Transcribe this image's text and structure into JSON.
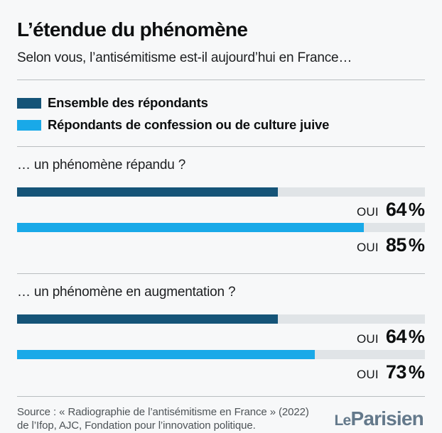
{
  "header": {
    "title": "L’étendue du phénomène",
    "subtitle": "Selon vous, l’antisémitisme est-il aujourd’hui en France…"
  },
  "colors": {
    "dark_blue": "#155478",
    "light_blue": "#19A9E8",
    "track_grey": "#E0E4E7",
    "background": "#F7F8F9",
    "logo_slate": "#64798B"
  },
  "legend": {
    "items": [
      {
        "label": "Ensemble des répondants",
        "color": "#155478"
      },
      {
        "label": "Répondants de confession ou de culture juive",
        "color": "#19A9E8"
      }
    ]
  },
  "sections": [
    {
      "question": "… un phénomène répandu ?",
      "bars": [
        {
          "series": "Ensemble des répondants",
          "answer": "OUI",
          "number": "64",
          "unit": "%",
          "percent": 64,
          "color": "#155478"
        },
        {
          "series": "Répondants de confession ou de culture juive",
          "answer": "OUI",
          "number": "85",
          "unit": "%",
          "percent": 85,
          "color": "#19A9E8"
        }
      ]
    },
    {
      "question": "… un phénomène en augmentation ?",
      "bars": [
        {
          "series": "Ensemble des répondants",
          "answer": "OUI",
          "number": "64",
          "unit": "%",
          "percent": 64,
          "color": "#155478"
        },
        {
          "series": "Répondants de confession ou de culture juive",
          "answer": "OUI",
          "number": "73",
          "unit": "%",
          "percent": 73,
          "color": "#19A9E8"
        }
      ]
    }
  ],
  "footer": {
    "source_line1": "Source : « Radiographie de l’antisémitisme en France » (2022)",
    "source_line2": "de l’Ifop, AJC, Fondation pour l’innovation politique.",
    "brand_word1": "Le",
    "brand_word2": "Parisien"
  },
  "chart_data": {
    "type": "bar",
    "orientation": "horizontal",
    "title": "L’étendue du phénomène",
    "subtitle": "Selon vous, l’antisémitisme est-il aujourd’hui en France…",
    "categories": [
      "… un phénomène répandu ?",
      "… un phénomène en augmentation ?"
    ],
    "series": [
      {
        "name": "Ensemble des répondants",
        "color": "#155478",
        "values": [
          64,
          64
        ]
      },
      {
        "name": "Répondants de confession ou de culture juive",
        "color": "#19A9E8",
        "values": [
          85,
          73
        ]
      }
    ],
    "answer_label": "OUI",
    "unit": "%",
    "xlim": [
      0,
      100
    ],
    "legend_position": "top",
    "grid": false,
    "source": "Source : « Radiographie de l’antisémitisme en France » (2022) de l’Ifop, AJC, Fondation pour l’innovation politique.",
    "brand": "Le Parisien"
  }
}
